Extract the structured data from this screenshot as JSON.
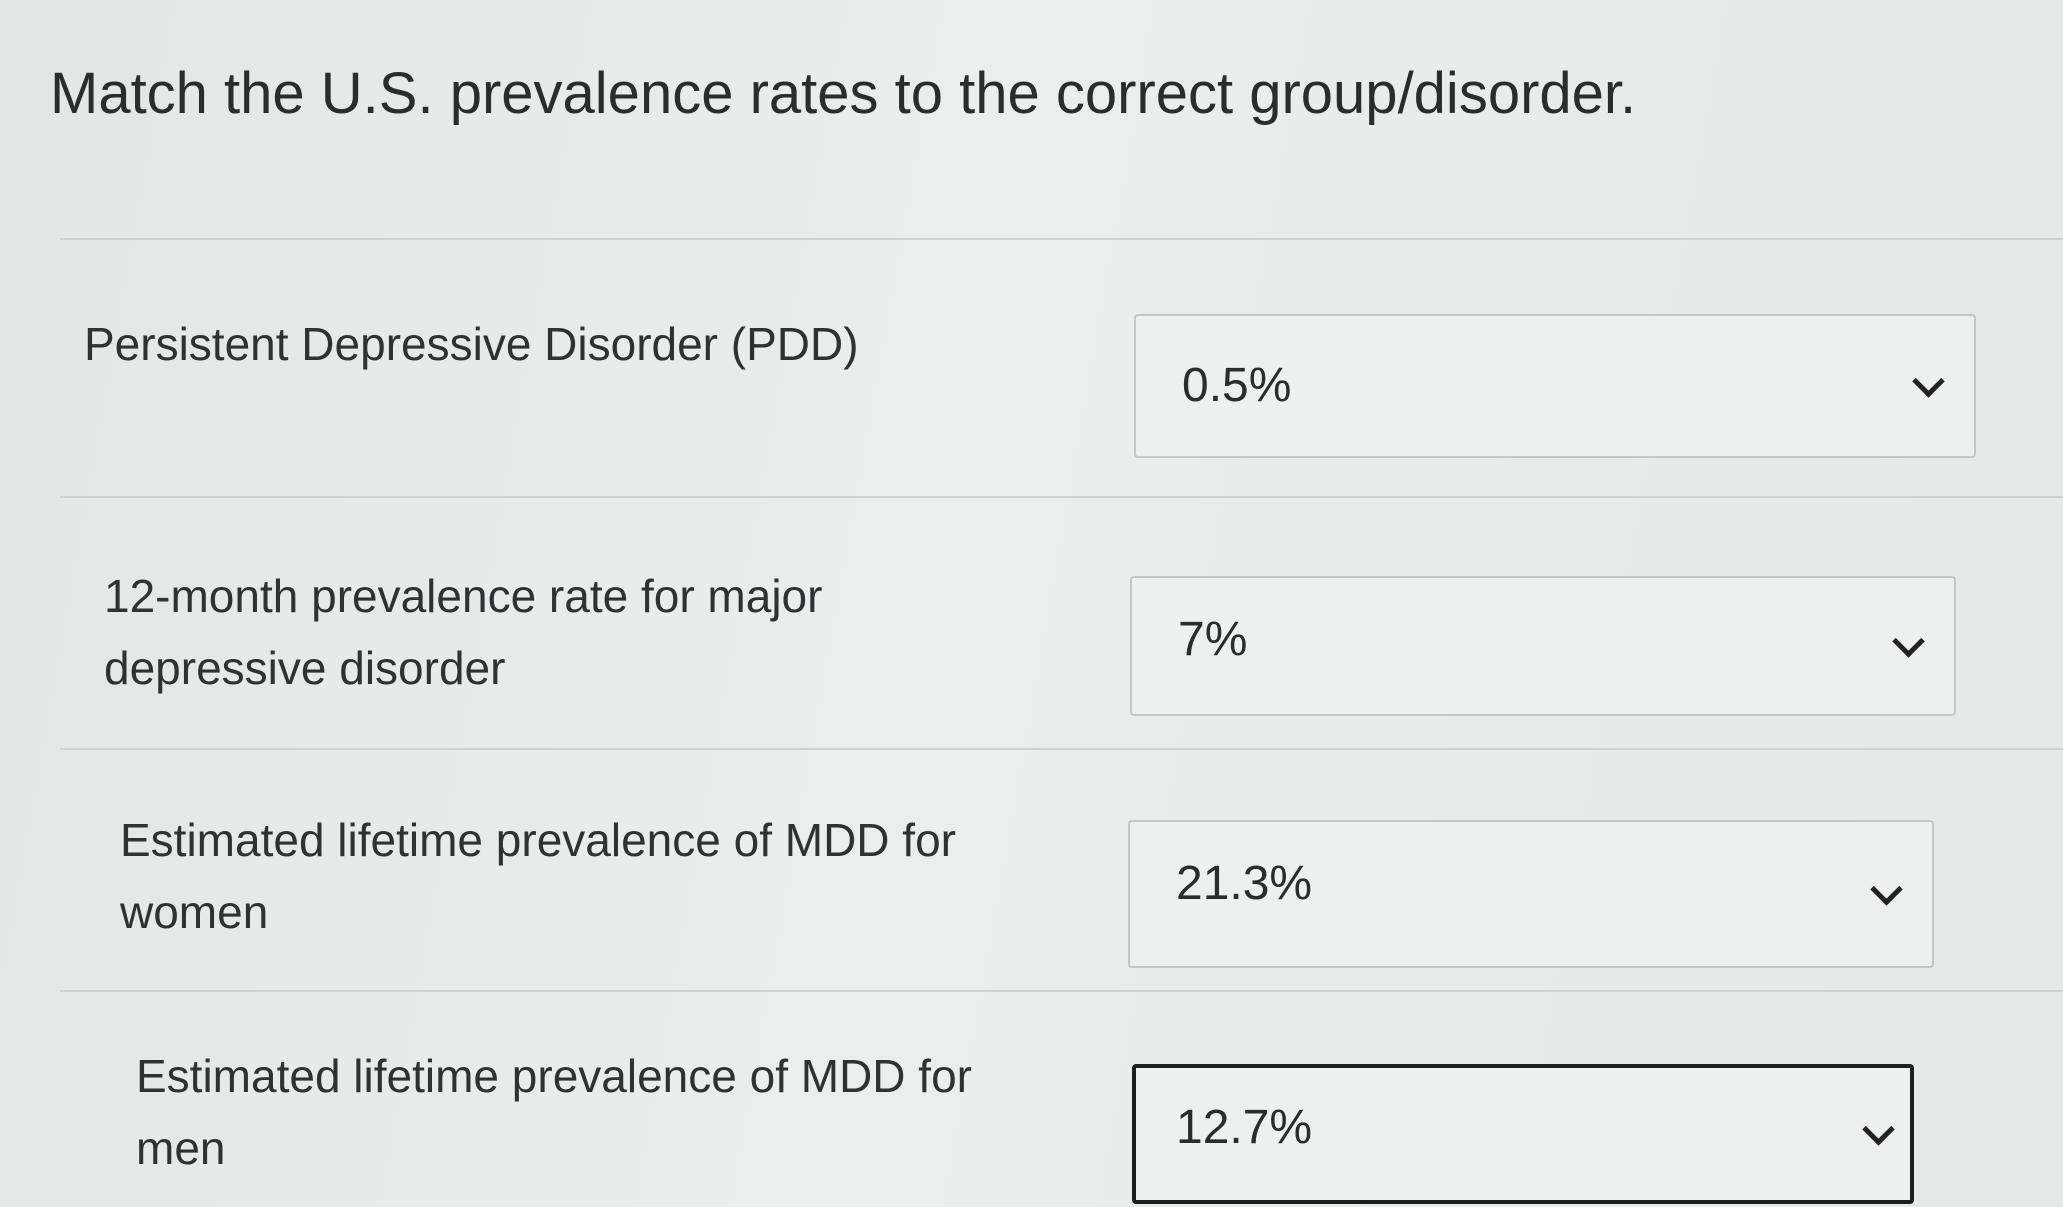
{
  "title": "Match the U.S. prevalence rates to the correct group/disorder.",
  "rows": [
    {
      "label": "Persistent Depressive Disorder (PDD)",
      "selected": "0.5%"
    },
    {
      "label": "12-month prevalence rate for major depressive disorder",
      "selected": "7%"
    },
    {
      "label": "Estimated lifetime prevalence of MDD for women",
      "selected": "21.3%"
    },
    {
      "label": "Estimated lifetime prevalence of MDD for men",
      "selected": "12.7%"
    }
  ]
}
